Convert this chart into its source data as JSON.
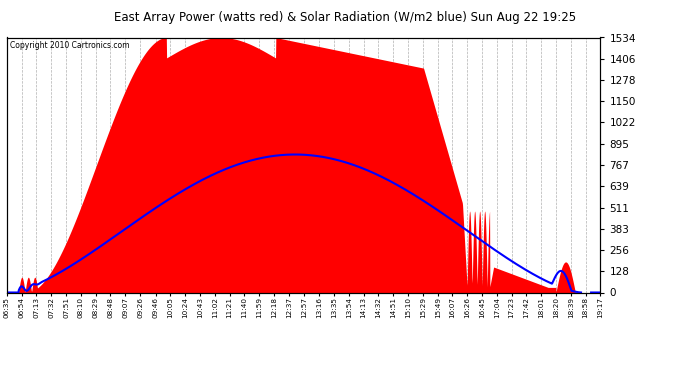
{
  "title": "East Array Power (watts red) & Solar Radiation (W/m2 blue) Sun Aug 22 19:25",
  "copyright": "Copyright 2010 Cartronics.com",
  "y_max": 1533.7,
  "y_ticks": [
    0.0,
    127.8,
    255.6,
    383.4,
    511.2,
    639.1,
    766.9,
    894.7,
    1022.5,
    1150.3,
    1278.1,
    1405.9,
    1533.7
  ],
  "x_labels": [
    "06:35",
    "06:54",
    "07:13",
    "07:32",
    "07:51",
    "08:10",
    "08:29",
    "08:48",
    "09:07",
    "09:26",
    "09:46",
    "10:05",
    "10:24",
    "10:43",
    "11:02",
    "11:21",
    "11:40",
    "11:59",
    "12:18",
    "12:37",
    "12:57",
    "13:16",
    "13:35",
    "13:54",
    "14:13",
    "14:32",
    "14:51",
    "15:10",
    "15:29",
    "15:49",
    "16:07",
    "16:26",
    "16:45",
    "17:04",
    "17:23",
    "17:42",
    "18:01",
    "18:20",
    "18:39",
    "18:58",
    "19:17"
  ],
  "bg_color": "#ffffff",
  "plot_bg_color": "#ffffff",
  "red_color": "#ff0000",
  "blue_color": "#0000ff",
  "grid_color": "#b0b0b0"
}
